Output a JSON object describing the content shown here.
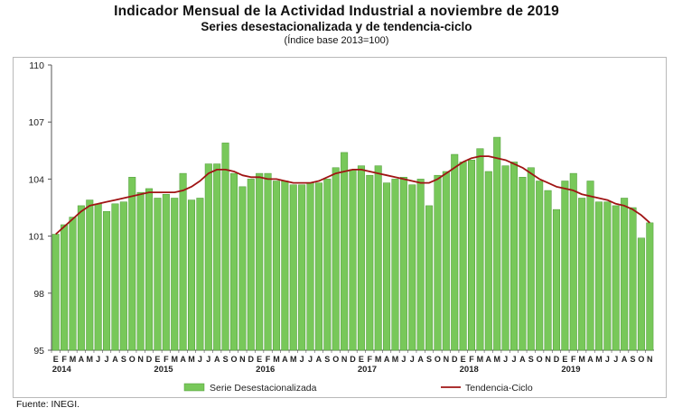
{
  "title": "Indicador Mensual de la Actividad Industrial a noviembre de 2019",
  "subtitle": "Series desestacionalizada y de tendencia-ciclo",
  "note": "(Índice base 2013=100)",
  "source": "Fuente: INEGI.",
  "colors": {
    "bar": "#78c85a",
    "bar_edge": "#4c9a35",
    "trend": "#a01414"
  },
  "chart_data": {
    "type": "bar",
    "ylim": [
      95,
      110
    ],
    "yticks": [
      95,
      98,
      101,
      104,
      107,
      110
    ],
    "grid": false,
    "legend_position": "bottom",
    "month_labels": [
      "E",
      "F",
      "M",
      "A",
      "M",
      "J",
      "J",
      "A",
      "S",
      "O",
      "N",
      "D",
      "E",
      "F",
      "M",
      "A",
      "M",
      "J",
      "J",
      "A",
      "S",
      "O",
      "N",
      "D",
      "E",
      "F",
      "M",
      "A",
      "M",
      "J",
      "J",
      "A",
      "S",
      "O",
      "N",
      "D",
      "E",
      "F",
      "M",
      "A",
      "M",
      "J",
      "J",
      "A",
      "S",
      "O",
      "N",
      "D",
      "E",
      "F",
      "M",
      "A",
      "M",
      "J",
      "J",
      "A",
      "S",
      "O",
      "N",
      "D",
      "E",
      "F",
      "M",
      "A",
      "M",
      "J",
      "J",
      "A",
      "S",
      "O",
      "N"
    ],
    "year_labels": [
      {
        "label": "2014",
        "index": 0
      },
      {
        "label": "2015",
        "index": 12
      },
      {
        "label": "2016",
        "index": 24
      },
      {
        "label": "2017",
        "index": 36
      },
      {
        "label": "2018",
        "index": 48
      },
      {
        "label": "2019",
        "index": 60
      }
    ],
    "series": [
      {
        "name": "Serie Desestacionalizada",
        "type": "bar",
        "values": [
          101.1,
          101.6,
          102.0,
          102.6,
          102.9,
          102.7,
          102.3,
          102.7,
          102.8,
          104.1,
          103.3,
          103.5,
          103.0,
          103.2,
          103.0,
          104.3,
          102.9,
          103.0,
          104.8,
          104.8,
          105.9,
          104.3,
          103.6,
          104.0,
          104.3,
          104.3,
          103.9,
          103.9,
          103.7,
          103.7,
          103.8,
          103.8,
          104.0,
          104.6,
          105.4,
          104.5,
          104.7,
          104.2,
          104.7,
          103.8,
          104.0,
          104.1,
          103.7,
          104.0,
          102.6,
          104.2,
          104.4,
          105.3,
          104.9,
          105.0,
          105.6,
          104.4,
          106.2,
          104.7,
          104.9,
          104.1,
          104.6,
          103.9,
          103.4,
          102.4,
          103.9,
          104.3,
          103.0,
          103.9,
          102.8,
          102.8,
          102.6,
          103.0,
          102.5,
          100.9,
          101.7
        ]
      },
      {
        "name": "Tendencia-Ciclo",
        "type": "line",
        "values": [
          101.1,
          101.5,
          101.9,
          102.3,
          102.6,
          102.7,
          102.8,
          102.9,
          103.0,
          103.1,
          103.2,
          103.3,
          103.3,
          103.3,
          103.3,
          103.4,
          103.6,
          103.9,
          104.3,
          104.5,
          104.5,
          104.4,
          104.2,
          104.1,
          104.1,
          104.0,
          104.0,
          103.9,
          103.8,
          103.8,
          103.8,
          103.9,
          104.1,
          104.3,
          104.4,
          104.5,
          104.5,
          104.4,
          104.3,
          104.2,
          104.1,
          104.0,
          103.9,
          103.8,
          103.8,
          104.0,
          104.3,
          104.6,
          104.9,
          105.1,
          105.2,
          105.2,
          105.1,
          105.0,
          104.8,
          104.6,
          104.3,
          104.0,
          103.8,
          103.6,
          103.5,
          103.4,
          103.2,
          103.1,
          103.0,
          102.9,
          102.7,
          102.6,
          102.4,
          102.1,
          101.7
        ]
      }
    ]
  }
}
